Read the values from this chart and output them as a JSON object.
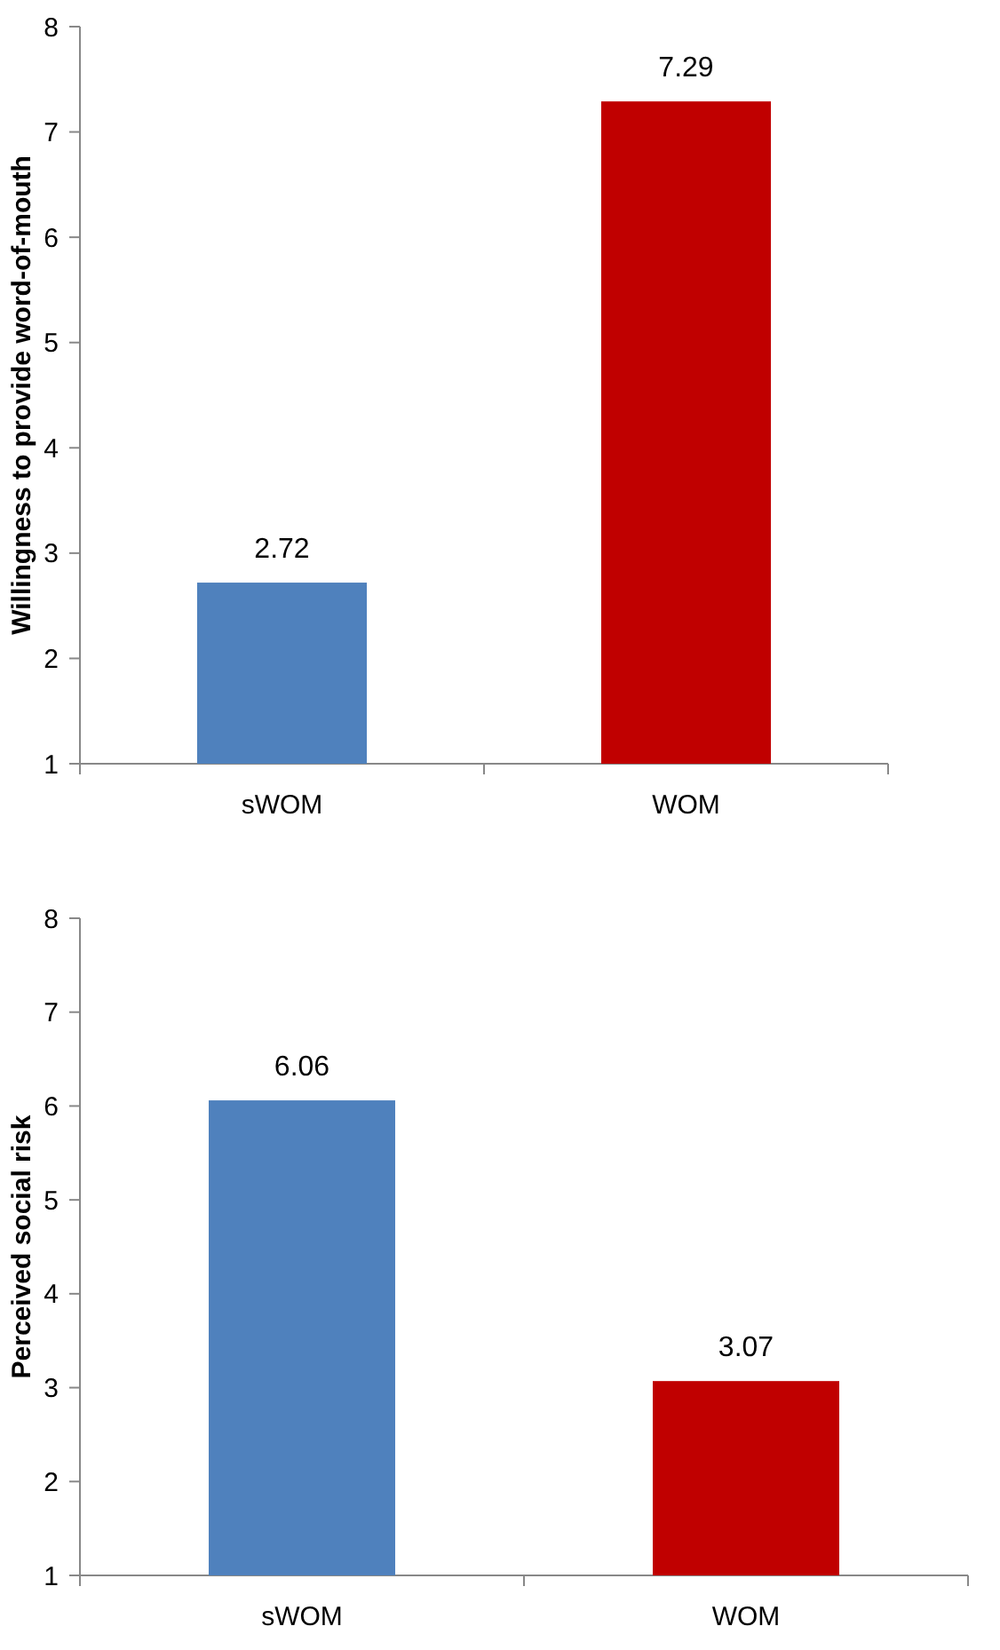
{
  "chart_data": [
    {
      "type": "bar",
      "ylabel": "Willingness to provide word-of-mouth",
      "categories": [
        "sWOM",
        "WOM"
      ],
      "values": [
        2.72,
        7.29
      ],
      "colors": [
        "#4f81bd",
        "#c00000"
      ],
      "ylim": [
        1,
        8
      ],
      "yticks": [
        1,
        2,
        3,
        4,
        5,
        6,
        7,
        8
      ],
      "data_labels": true
    },
    {
      "type": "bar",
      "ylabel": "Perceived social risk",
      "categories": [
        "sWOM",
        "WOM"
      ],
      "values": [
        6.06,
        3.07
      ],
      "colors": [
        "#4f81bd",
        "#c00000"
      ],
      "ylim": [
        1,
        8
      ],
      "yticks": [
        1,
        2,
        3,
        4,
        5,
        6,
        7,
        8
      ],
      "data_labels": true
    }
  ]
}
